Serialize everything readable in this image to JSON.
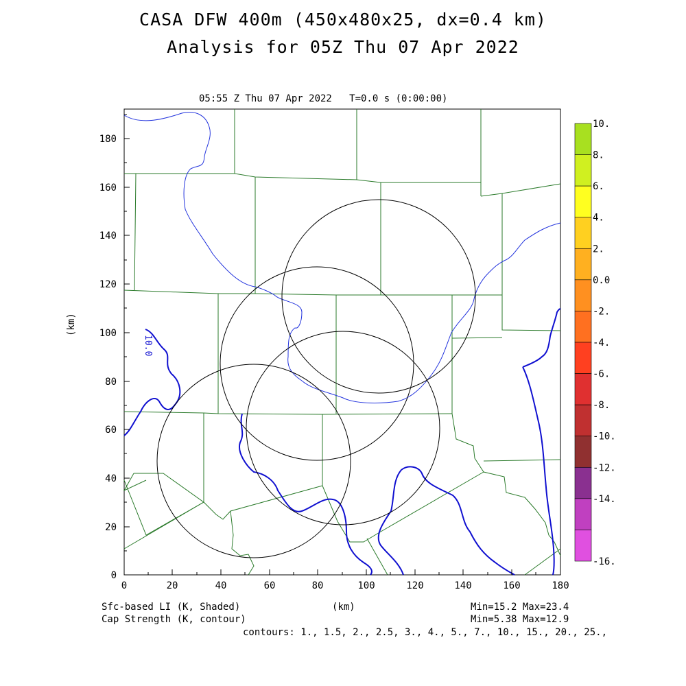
{
  "title": {
    "line1": "CASA DFW 400m (450x480x25, dx=0.4 km)",
    "line2": "Analysis for 05Z Thu 07 Apr 2022"
  },
  "timestamp": "05:55 Z Thu 07 Apr 2022   T=0.0 s (0:00:00)",
  "axes": {
    "x_ticks": [
      "0",
      "20",
      "40",
      "60",
      "80",
      "100",
      "120",
      "140",
      "160",
      "180"
    ],
    "y_ticks": [
      "0",
      "20",
      "40",
      "60",
      "80",
      "100",
      "120",
      "140",
      "160",
      "180"
    ],
    "x_label": "(km)",
    "y_label": "(km)"
  },
  "colorbar": {
    "labels": [
      "10.",
      "8.",
      "6.",
      "4.",
      "2.",
      "0.0",
      "-2.",
      "-4.",
      "-6.",
      "-8.",
      "-10.",
      "-12.",
      "-14.",
      "-16."
    ],
    "colors": [
      "#a8e020",
      "#d0f020",
      "#ffff20",
      "#ffd020",
      "#ffb020",
      "#ff9020",
      "#ff7020",
      "#ff4020",
      "#e03030",
      "#c03030",
      "#903030",
      "#8a3090",
      "#c040c0",
      "#e050e0"
    ]
  },
  "footer": {
    "field1": "Sfc-based LI (K, Shaded)",
    "field2": "Cap Strength (K, contour)",
    "xunit": "(km)",
    "stats1": "Min=15.2 Max=23.4",
    "stats2": "Min=5.38 Max=12.9",
    "contours": "contours: 1., 1.5, 2., 2.5, 3., 4., 5., 7., 10., 15., 20., 25.,"
  },
  "contour_label": "10.0",
  "map": {
    "domain_km": [
      0,
      180,
      0,
      192
    ],
    "radar_rings": [
      {
        "cx": 106,
        "cy": 115,
        "r": 40
      },
      {
        "cx": 80,
        "cy": 87,
        "r": 40
      },
      {
        "cx": 90,
        "cy": 61,
        "r": 40
      },
      {
        "cx": 53,
        "cy": 47,
        "r": 40
      }
    ]
  }
}
